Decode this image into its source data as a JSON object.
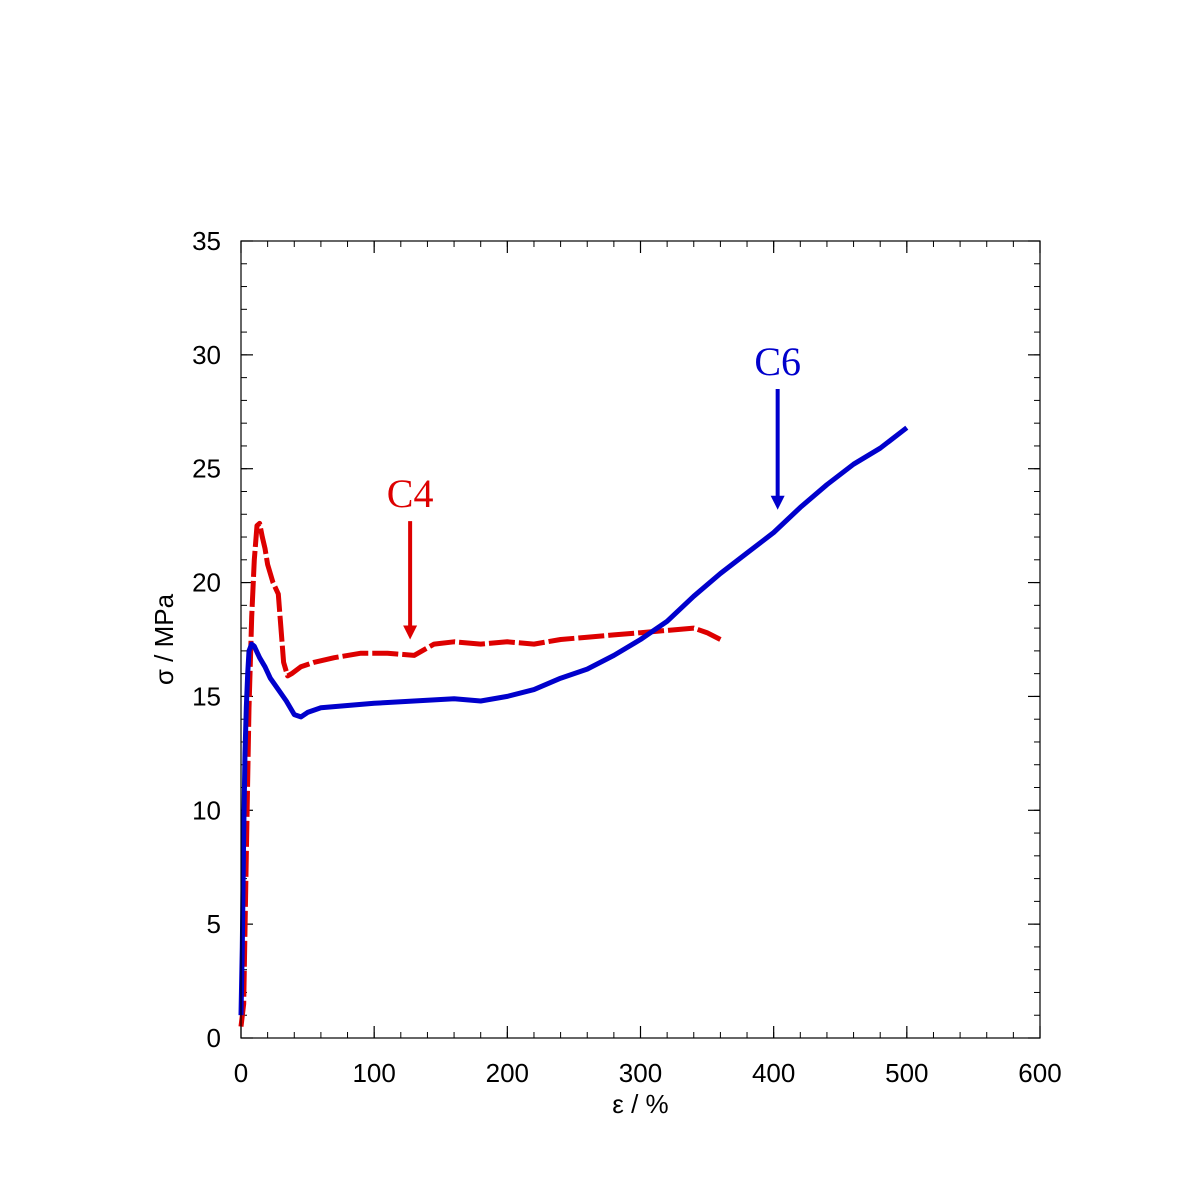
{
  "chart_data": {
    "type": "line",
    "xlabel": "ε / %",
    "ylabel": "σ / MPa",
    "xlim": [
      0,
      600
    ],
    "ylim": [
      0,
      35
    ],
    "xticks": [
      0,
      100,
      200,
      300,
      400,
      500,
      600
    ],
    "yticks": [
      0,
      5,
      10,
      15,
      20,
      25,
      30,
      35
    ],
    "x_minor_step": 20,
    "y_minor_step": 1,
    "grid": false,
    "legend": "none",
    "series": [
      {
        "name": "C4",
        "color": "#dd0000",
        "dash": "dashed",
        "x": [
          0,
          2,
          4,
          6,
          8,
          10,
          12,
          14,
          16,
          18,
          20,
          24,
          28,
          32,
          35,
          38,
          45,
          55,
          70,
          90,
          110,
          130,
          145,
          160,
          180,
          200,
          220,
          240,
          260,
          280,
          300,
          320,
          340,
          350,
          360
        ],
        "y": [
          0.5,
          1.5,
          8,
          14.5,
          18.5,
          21,
          22.5,
          22.6,
          22,
          21.5,
          20.8,
          20,
          19.5,
          16.5,
          15.9,
          16,
          16.3,
          16.5,
          16.7,
          16.9,
          16.9,
          16.8,
          17.3,
          17.4,
          17.3,
          17.4,
          17.3,
          17.5,
          17.6,
          17.7,
          17.8,
          17.9,
          18,
          17.8,
          17.5
        ]
      },
      {
        "name": "C6",
        "color": "#0000cc",
        "dash": "solid",
        "x": [
          0,
          1,
          2,
          3,
          4,
          5,
          6,
          8,
          10,
          14,
          18,
          22,
          28,
          34,
          40,
          45,
          50,
          60,
          80,
          100,
          130,
          160,
          180,
          200,
          220,
          240,
          260,
          280,
          300,
          320,
          340,
          360,
          380,
          400,
          420,
          440,
          460,
          480,
          500
        ],
        "y": [
          1,
          4,
          9,
          12.5,
          14.5,
          16,
          17,
          17.3,
          17.2,
          16.7,
          16.3,
          15.8,
          15.3,
          14.8,
          14.2,
          14.1,
          14.3,
          14.5,
          14.6,
          14.7,
          14.8,
          14.9,
          14.8,
          15,
          15.3,
          15.8,
          16.2,
          16.8,
          17.5,
          18.3,
          19.4,
          20.4,
          21.3,
          22.2,
          23.3,
          24.3,
          25.2,
          25.9,
          26.8
        ]
      }
    ],
    "annotations": [
      {
        "text": "C4",
        "color": "#dd0000",
        "arrow_from": [
          127,
          22.7
        ],
        "arrow_to": [
          127,
          17.5
        ]
      },
      {
        "text": "C6",
        "color": "#0000cc",
        "arrow_from": [
          403,
          28.5
        ],
        "arrow_to": [
          403,
          23.2
        ]
      }
    ]
  }
}
